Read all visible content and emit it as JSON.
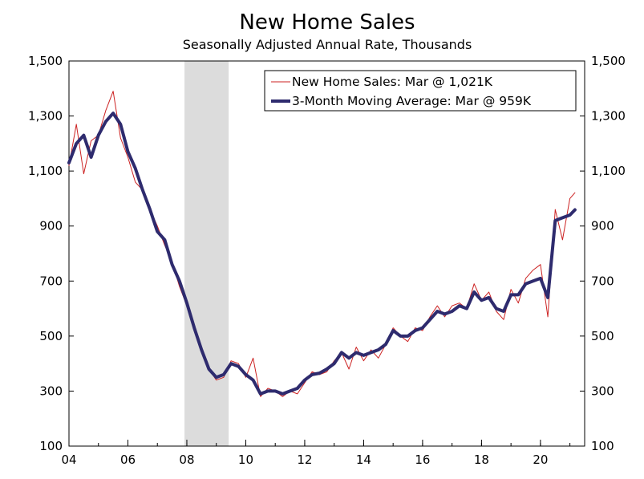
{
  "chart_data": {
    "type": "line",
    "title": "New Home Sales",
    "subtitle": "Seasonally Adjusted Annual Rate, Thousands",
    "xlabel": "",
    "ylabel": "",
    "xlim": [
      2004.0,
      2021.5
    ],
    "ylim": [
      100,
      1500
    ],
    "x_ticks": [
      {
        "value": 2004,
        "label": "04"
      },
      {
        "value": 2006,
        "label": "06"
      },
      {
        "value": 2008,
        "label": "08"
      },
      {
        "value": 2010,
        "label": "10"
      },
      {
        "value": 2012,
        "label": "12"
      },
      {
        "value": 2014,
        "label": "14"
      },
      {
        "value": 2016,
        "label": "16"
      },
      {
        "value": 2018,
        "label": "18"
      },
      {
        "value": 2020,
        "label": "20"
      }
    ],
    "y_ticks": [
      {
        "value": 100,
        "label": "100"
      },
      {
        "value": 300,
        "label": "300"
      },
      {
        "value": 500,
        "label": "500"
      },
      {
        "value": 700,
        "label": "700"
      },
      {
        "value": 900,
        "label": "900"
      },
      {
        "value": 1100,
        "label": "1,100"
      },
      {
        "value": 1300,
        "label": "1,300"
      },
      {
        "value": 1500,
        "label": "1,500"
      }
    ],
    "recession": {
      "start": 2007.92,
      "end": 2009.42,
      "color": "#dcdcdc"
    },
    "legend_position": "top-right",
    "series": [
      {
        "name": "New Home Sales: Mar @ 1,021K",
        "color": "#cc2222",
        "style": "thin",
        "x": [
          2004.0,
          2004.25,
          2004.5,
          2004.75,
          2005.0,
          2005.25,
          2005.5,
          2005.75,
          2006.0,
          2006.25,
          2006.5,
          2006.75,
          2007.0,
          2007.25,
          2007.5,
          2007.75,
          2008.0,
          2008.25,
          2008.5,
          2008.75,
          2009.0,
          2009.25,
          2009.5,
          2009.75,
          2010.0,
          2010.25,
          2010.5,
          2010.75,
          2011.0,
          2011.25,
          2011.5,
          2011.75,
          2012.0,
          2012.25,
          2012.5,
          2012.75,
          2013.0,
          2013.25,
          2013.5,
          2013.75,
          2014.0,
          2014.25,
          2014.5,
          2014.75,
          2015.0,
          2015.25,
          2015.5,
          2015.75,
          2016.0,
          2016.25,
          2016.5,
          2016.75,
          2017.0,
          2017.25,
          2017.5,
          2017.75,
          2018.0,
          2018.25,
          2018.5,
          2018.75,
          2019.0,
          2019.25,
          2019.5,
          2019.75,
          2020.0,
          2020.25,
          2020.5,
          2020.75,
          2021.0,
          2021.17
        ],
        "values": [
          1120,
          1270,
          1090,
          1210,
          1230,
          1320,
          1390,
          1220,
          1150,
          1060,
          1030,
          960,
          900,
          830,
          770,
          680,
          610,
          520,
          460,
          380,
          340,
          350,
          410,
          400,
          350,
          420,
          280,
          310,
          300,
          280,
          300,
          290,
          330,
          370,
          360,
          370,
          410,
          440,
          380,
          460,
          410,
          450,
          420,
          470,
          530,
          500,
          480,
          530,
          520,
          570,
          610,
          570,
          610,
          620,
          600,
          690,
          630,
          660,
          590,
          560,
          670,
          620,
          710,
          740,
          760,
          570,
          960,
          850,
          1000,
          1021
        ]
      },
      {
        "name": "3-Month Moving Average: Mar @ 959K",
        "color": "#2e2b6e",
        "style": "thick",
        "x": [
          2004.0,
          2004.25,
          2004.5,
          2004.75,
          2005.0,
          2005.25,
          2005.5,
          2005.75,
          2006.0,
          2006.25,
          2006.5,
          2006.75,
          2007.0,
          2007.25,
          2007.5,
          2007.75,
          2008.0,
          2008.25,
          2008.5,
          2008.75,
          2009.0,
          2009.25,
          2009.5,
          2009.75,
          2010.0,
          2010.25,
          2010.5,
          2010.75,
          2011.0,
          2011.25,
          2011.5,
          2011.75,
          2012.0,
          2012.25,
          2012.5,
          2012.75,
          2013.0,
          2013.25,
          2013.5,
          2013.75,
          2014.0,
          2014.25,
          2014.5,
          2014.75,
          2015.0,
          2015.25,
          2015.5,
          2015.75,
          2016.0,
          2016.25,
          2016.5,
          2016.75,
          2017.0,
          2017.25,
          2017.5,
          2017.75,
          2018.0,
          2018.25,
          2018.5,
          2018.75,
          2019.0,
          2019.25,
          2019.5,
          2019.75,
          2020.0,
          2020.25,
          2020.5,
          2020.75,
          2021.0,
          2021.17
        ],
        "values": [
          1130,
          1200,
          1230,
          1150,
          1230,
          1280,
          1310,
          1270,
          1170,
          1110,
          1030,
          960,
          880,
          850,
          760,
          700,
          620,
          530,
          450,
          380,
          350,
          360,
          400,
          390,
          360,
          340,
          290,
          300,
          300,
          290,
          300,
          310,
          340,
          360,
          365,
          380,
          400,
          440,
          420,
          440,
          430,
          440,
          450,
          470,
          520,
          500,
          500,
          520,
          530,
          560,
          590,
          580,
          590,
          610,
          600,
          660,
          630,
          640,
          600,
          590,
          650,
          650,
          690,
          700,
          710,
          640,
          920,
          930,
          940,
          959
        ]
      }
    ]
  }
}
